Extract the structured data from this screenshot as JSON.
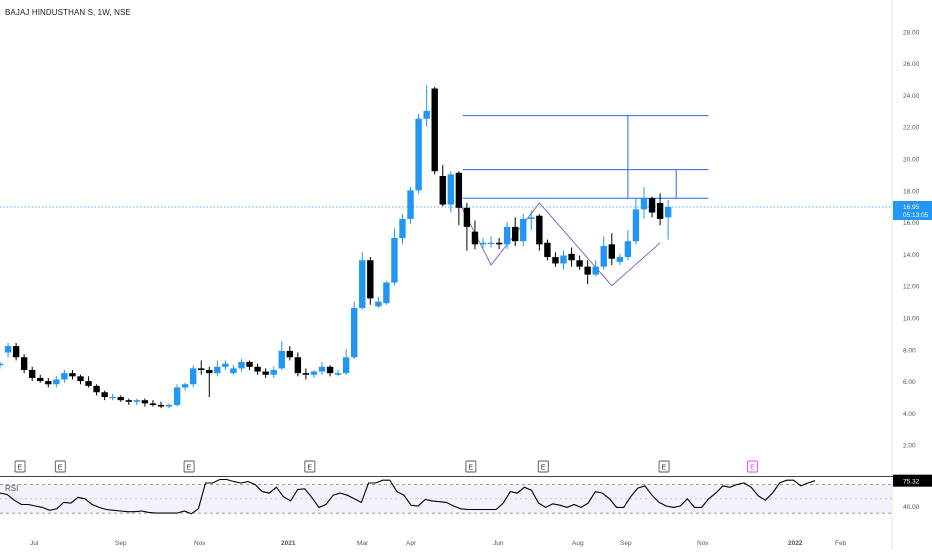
{
  "chart_data": [
    {
      "type": "candlestick",
      "title": "BAJAJ HINDUSTHAN S, 1W, NSE",
      "y_ticks": [
        "2.00",
        "4.00",
        "6.00",
        "8.00",
        "10.00",
        "12.00",
        "14.00",
        "16.00",
        "18.00",
        "20.00",
        "22.00",
        "24.00",
        "26.00",
        "28.00"
      ],
      "ylim": [
        0,
        29.5
      ],
      "x_ticks": [
        "Jul",
        "Sep",
        "Nov",
        "2021",
        "Mar",
        "Apr",
        "Jun",
        "Aug",
        "Sep",
        "Nov",
        "2022",
        "Feb"
      ],
      "last_price": "16.95",
      "countdown": "05:13:05",
      "earnings_marker_label": "E",
      "colors": {
        "up": "#2196f3",
        "down": "#000000",
        "line": "#2962ff",
        "pattern": "#7e57c2",
        "price_line": "#2196f3"
      },
      "candles": [
        [
          7.0,
          7.2,
          6.8,
          7.1
        ],
        [
          7.8,
          8.4,
          7.5,
          8.2
        ],
        [
          8.2,
          8.4,
          7.3,
          7.5
        ],
        [
          7.5,
          7.7,
          6.5,
          6.7
        ],
        [
          6.7,
          6.9,
          6.0,
          6.2
        ],
        [
          6.2,
          6.4,
          5.9,
          6.0
        ],
        [
          6.0,
          6.2,
          5.6,
          5.8
        ],
        [
          5.8,
          6.3,
          5.6,
          6.1
        ],
        [
          6.1,
          6.7,
          5.9,
          6.5
        ],
        [
          6.5,
          6.7,
          6.1,
          6.3
        ],
        [
          6.3,
          6.4,
          5.8,
          6.0
        ],
        [
          6.0,
          6.3,
          5.6,
          5.7
        ],
        [
          5.7,
          5.8,
          5.1,
          5.3
        ],
        [
          5.3,
          5.4,
          4.8,
          5.0
        ],
        [
          5.0,
          5.2,
          4.8,
          5.0
        ],
        [
          5.0,
          5.1,
          4.7,
          4.8
        ],
        [
          4.8,
          4.9,
          4.5,
          4.7
        ],
        [
          4.7,
          4.9,
          4.5,
          4.8
        ],
        [
          4.8,
          4.9,
          4.4,
          4.6
        ],
        [
          4.6,
          4.8,
          4.4,
          4.5
        ],
        [
          4.5,
          4.7,
          4.3,
          4.4
        ],
        [
          4.4,
          4.6,
          4.3,
          4.5
        ],
        [
          4.5,
          5.8,
          4.4,
          5.6
        ],
        [
          5.6,
          5.9,
          5.4,
          5.8
        ],
        [
          5.8,
          7.0,
          5.6,
          6.8
        ],
        [
          6.8,
          7.3,
          6.4,
          6.7
        ],
        [
          6.7,
          6.9,
          5.0,
          6.5
        ],
        [
          6.5,
          7.3,
          6.3,
          6.9
        ],
        [
          6.9,
          7.3,
          6.7,
          7.1
        ],
        [
          6.5,
          7.0,
          6.4,
          6.8
        ],
        [
          6.8,
          7.4,
          6.6,
          7.2
        ],
        [
          7.2,
          7.3,
          6.7,
          6.9
        ],
        [
          6.9,
          7.1,
          6.4,
          6.6
        ],
        [
          6.6,
          6.8,
          6.2,
          6.4
        ],
        [
          6.4,
          6.9,
          6.2,
          6.7
        ],
        [
          6.8,
          8.5,
          6.7,
          7.9
        ],
        [
          7.9,
          8.2,
          7.3,
          7.5
        ],
        [
          7.5,
          7.8,
          6.3,
          6.5
        ],
        [
          6.5,
          6.8,
          6.1,
          6.4
        ],
        [
          6.4,
          6.7,
          6.2,
          6.6
        ],
        [
          6.6,
          7.2,
          6.4,
          6.9
        ],
        [
          6.9,
          7.0,
          6.3,
          6.5
        ],
        [
          6.4,
          6.7,
          6.3,
          6.5
        ],
        [
          6.5,
          8.0,
          6.4,
          7.5
        ],
        [
          7.5,
          11.0,
          7.4,
          10.6
        ],
        [
          10.6,
          14.1,
          10.5,
          13.6
        ],
        [
          13.6,
          13.8,
          10.8,
          11.2
        ],
        [
          10.7,
          11.3,
          10.6,
          11.0
        ],
        [
          10.9,
          12.3,
          10.8,
          12.2
        ],
        [
          12.2,
          15.6,
          12.0,
          15.0
        ],
        [
          15.0,
          16.5,
          14.6,
          16.2
        ],
        [
          16.2,
          18.2,
          15.9,
          18.0
        ],
        [
          18.0,
          22.8,
          17.8,
          22.5
        ],
        [
          22.5,
          24.6,
          22.0,
          23.0
        ],
        [
          24.4,
          24.5,
          19.0,
          19.2
        ],
        [
          18.9,
          19.6,
          17.0,
          17.1
        ],
        [
          17.1,
          19.2,
          16.6,
          19.0
        ],
        [
          19.1,
          19.2,
          15.8,
          16.9
        ],
        [
          16.9,
          17.2,
          14.2,
          15.7
        ],
        [
          15.4,
          16.1,
          14.3,
          14.6
        ],
        [
          14.6,
          15.0,
          14.3,
          14.7
        ],
        [
          14.7,
          15.1,
          14.4,
          14.7
        ],
        [
          14.7,
          15.0,
          14.3,
          14.6
        ],
        [
          14.6,
          16.0,
          14.3,
          15.7
        ],
        [
          15.7,
          16.3,
          14.5,
          14.8
        ],
        [
          14.8,
          16.5,
          14.5,
          16.2
        ],
        [
          16.2,
          16.7,
          15.5,
          16.3
        ],
        [
          16.4,
          16.5,
          14.2,
          14.6
        ],
        [
          14.7,
          14.9,
          13.6,
          13.8
        ],
        [
          13.8,
          14.1,
          13.2,
          13.4
        ],
        [
          13.4,
          14.2,
          13.0,
          13.9
        ],
        [
          14.0,
          14.4,
          13.2,
          13.6
        ],
        [
          13.6,
          13.9,
          13.0,
          13.2
        ],
        [
          13.2,
          13.6,
          12.1,
          12.7
        ],
        [
          12.7,
          13.6,
          12.6,
          13.2
        ],
        [
          13.2,
          15.1,
          13.0,
          14.5
        ],
        [
          14.6,
          15.3,
          13.3,
          13.7
        ],
        [
          13.5,
          14.0,
          13.3,
          13.8
        ],
        [
          13.8,
          15.5,
          13.6,
          14.8
        ],
        [
          14.8,
          17.5,
          14.6,
          16.8
        ],
        [
          16.8,
          18.2,
          16.2,
          17.5
        ],
        [
          17.5,
          17.6,
          16.3,
          16.6
        ],
        [
          17.2,
          17.8,
          15.8,
          16.2
        ],
        [
          16.3,
          17.4,
          14.9,
          16.95
        ]
      ],
      "rsi": {
        "label": "RSI",
        "last_value": "75.32",
        "levels": [
          30,
          70
        ],
        "ticks": [
          "40.00"
        ],
        "values": [
          58,
          56,
          48,
          42,
          42,
          40,
          38,
          34,
          36,
          45,
          44,
          52,
          50,
          42,
          38,
          35,
          34,
          33,
          32,
          32,
          33,
          31,
          30,
          30,
          30,
          30,
          33,
          29,
          36,
          72,
          72,
          77,
          77,
          74,
          72,
          74,
          70,
          60,
          58,
          66,
          53,
          47,
          63,
          64,
          52,
          38,
          42,
          55,
          58,
          55,
          50,
          45,
          72,
          72,
          76,
          76,
          60,
          55,
          41,
          40,
          49,
          47,
          46,
          45,
          40,
          36,
          35,
          35,
          35,
          35,
          35,
          44,
          60,
          58,
          66,
          62,
          44,
          38,
          43,
          41,
          38,
          42,
          38,
          44,
          60,
          58,
          50,
          38,
          38,
          53,
          65,
          68,
          55,
          45,
          40,
          38,
          40,
          50,
          38,
          38,
          50,
          58,
          68,
          66,
          70,
          72,
          66,
          54,
          48,
          58,
          72,
          76,
          76,
          68,
          72,
          75.32
        ]
      },
      "trendlines": [
        {
          "type": "horizontal",
          "y": 22.7,
          "x_from_candle": 57,
          "x_to_candle": 88
        },
        {
          "type": "horizontal",
          "y": 19.3,
          "x_from_candle": 57,
          "x_to_candle": 88
        },
        {
          "type": "horizontal",
          "y": 17.5,
          "x_from_candle": 57,
          "x_to_candle": 88
        },
        {
          "type": "vertical",
          "candle": 78,
          "y_from": 17.5,
          "y_to": 22.7
        },
        {
          "type": "vertical",
          "candle": 84,
          "y_from": 17.5,
          "y_to": 19.3
        }
      ],
      "pattern": [
        [
          57,
          17.3
        ],
        [
          61,
          13.3
        ],
        [
          67,
          17.2
        ],
        [
          76,
          12.0
        ],
        [
          82,
          14.7
        ]
      ],
      "earnings_markers_candles": [
        1,
        6,
        22,
        37,
        57,
        66,
        81
      ],
      "earnings_markers_pending": [
        92
      ]
    }
  ]
}
